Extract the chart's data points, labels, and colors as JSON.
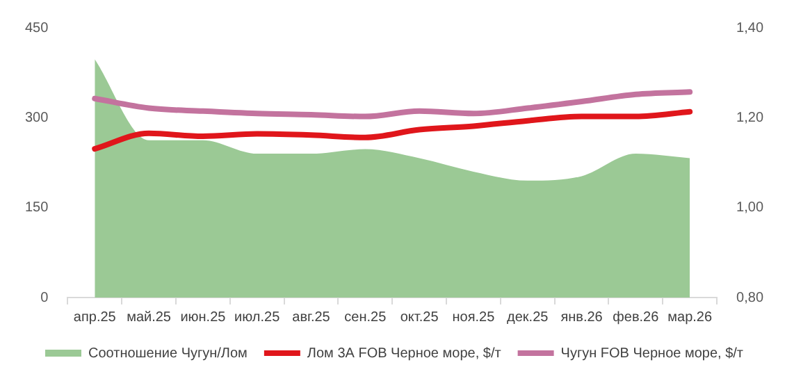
{
  "chart_data": {
    "type": "line",
    "categories": [
      "апр.25",
      "май.25",
      "июн.25",
      "июл.25",
      "авг.25",
      "сен.25",
      "окт.25",
      "ноя.25",
      "дек.25",
      "янв.26",
      "фев.26",
      "мар.26"
    ],
    "series": [
      {
        "name": "Соотношение Чугун/Лом",
        "type": "area",
        "axis": "y2",
        "color": "#9bc995",
        "values": [
          1.33,
          1.15,
          1.15,
          1.12,
          1.12,
          1.13,
          1.11,
          1.08,
          1.06,
          1.07,
          1.12,
          1.11
        ]
      },
      {
        "name": "Лом 3А FOB Черное море, $/т",
        "color": "#e0161b",
        "values": [
          248,
          274,
          269,
          273,
          271,
          267,
          280,
          286,
          295,
          302,
          302,
          310
        ]
      },
      {
        "name": "Чугун FOB Черное море, $/т",
        "color": "#c3739e",
        "values": [
          332,
          316,
          311,
          307,
          305,
          302,
          311,
          307,
          316,
          327,
          339,
          343
        ]
      }
    ],
    "ylim": [
      0,
      450
    ],
    "yticks": [
      0,
      150,
      300,
      450
    ],
    "y2lim": [
      0.8,
      1.4
    ],
    "y2ticks": [
      {
        "value": 0.8,
        "label": "0,80"
      },
      {
        "value": 1.0,
        "label": "1,00"
      },
      {
        "value": 1.2,
        "label": "1,20"
      },
      {
        "value": 1.4,
        "label": "1,40"
      }
    ],
    "legend": "bottom"
  }
}
